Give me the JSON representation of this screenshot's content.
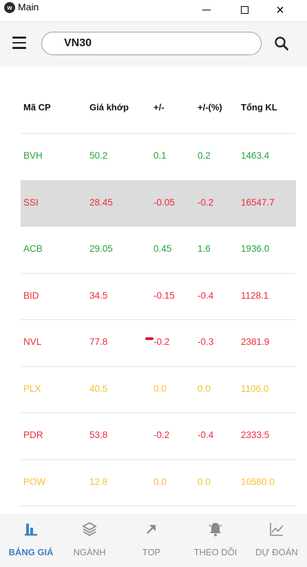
{
  "window": {
    "title": "Main",
    "min_symbol": "",
    "max_symbol": "",
    "close_symbol": "×"
  },
  "search": {
    "value": "VN30"
  },
  "table": {
    "headers": [
      "Mã CP",
      "Giá khớp",
      "+/-",
      "+/-(%)",
      "Tổng KL"
    ],
    "rows": [
      {
        "code": "BVH",
        "price": "50.2",
        "change": "0.1",
        "pct": "0.2",
        "volume": "1463.4",
        "trend": "up"
      },
      {
        "code": "SSI",
        "price": "28.45",
        "change": "-0.05",
        "pct": "-0.2",
        "volume": "16547.7",
        "trend": "down",
        "selected": true
      },
      {
        "code": "ACB",
        "price": "29.05",
        "change": "0.45",
        "pct": "1.6",
        "volume": "1936.0",
        "trend": "up"
      },
      {
        "code": "BID",
        "price": "34.5",
        "change": "-0.15",
        "pct": "-0.4",
        "volume": "1128.1",
        "trend": "down"
      },
      {
        "code": "NVL",
        "price": "77.8",
        "change": "-0.2",
        "pct": "-0.3",
        "volume": "2381.9",
        "trend": "down"
      },
      {
        "code": "PLX",
        "price": "40.5",
        "change": "0.0",
        "pct": "0.0",
        "volume": "1106.0",
        "trend": "ref"
      },
      {
        "code": "PDR",
        "price": "53.8",
        "change": "-0.2",
        "pct": "-0.4",
        "volume": "2333.5",
        "trend": "down"
      },
      {
        "code": "POW",
        "price": "12.8",
        "change": "0.0",
        "pct": "0.0",
        "volume": "10580.0",
        "trend": "ref"
      }
    ]
  },
  "colors": {
    "up": "#22a33a",
    "down": "#ee2a3a",
    "reference": "#f4c030",
    "accent": "#3b82c4"
  },
  "nav": {
    "items": [
      {
        "label": "BẢNG GIÁ",
        "icon": "bar-chart-icon",
        "active": true
      },
      {
        "label": "NGÀNH",
        "icon": "layers-icon"
      },
      {
        "label": "TOP",
        "icon": "arrow-up-right-icon"
      },
      {
        "label": "THEO DÕI",
        "icon": "bell-icon"
      },
      {
        "label": "DỰ ĐOÁN",
        "icon": "line-chart-icon"
      }
    ]
  }
}
